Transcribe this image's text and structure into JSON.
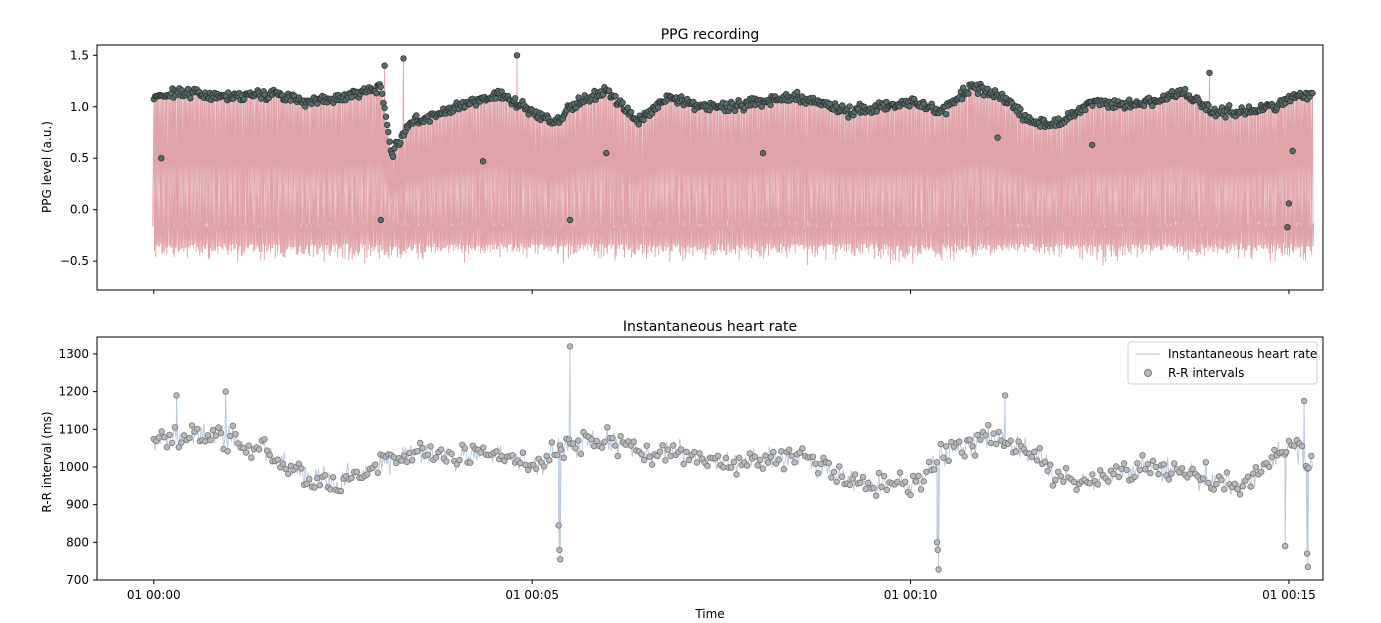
{
  "chart_data": [
    {
      "type": "line",
      "panel": "top",
      "title": "PPG recording",
      "ylabel": "PPG level (a.u.)",
      "xlabel": "",
      "xlim_minutes": [
        -0.75,
        15.45
      ],
      "ylim": [
        -0.78,
        1.6
      ],
      "yticks": [
        -0.5,
        0.0,
        0.5,
        1.0,
        1.5
      ],
      "ytick_labels": [
        "−0.5",
        "0.0",
        "0.5",
        "1.0",
        "1.5"
      ],
      "xticks_minutes": [
        0,
        5,
        10,
        15
      ],
      "xtick_labels": [
        "",
        "",
        "",
        ""
      ],
      "grid": false,
      "series": [
        {
          "role": "signal",
          "color": "#e0a4a8"
        },
        {
          "role": "peaks",
          "color": "#546e6d",
          "edge_color": "#333333"
        }
      ],
      "duration_minutes": 15.33,
      "baseline_level": -0.15,
      "peak_level_profile": {
        "t_minutes": [
          0.0,
          0.4,
          0.8,
          1.2,
          1.6,
          2.0,
          2.4,
          2.8,
          3.0,
          3.15,
          3.4,
          3.8,
          4.2,
          4.6,
          5.0,
          5.3,
          5.6,
          6.0,
          6.4,
          6.8,
          7.2,
          7.6,
          8.0,
          8.4,
          8.8,
          9.2,
          9.6,
          10.0,
          10.4,
          10.8,
          11.2,
          11.6,
          12.0,
          12.4,
          12.8,
          13.2,
          13.6,
          14.0,
          14.4,
          14.8,
          15.0,
          15.2,
          15.33
        ],
        "level": [
          1.1,
          1.15,
          1.1,
          1.12,
          1.13,
          1.05,
          1.08,
          1.15,
          1.2,
          0.55,
          0.85,
          0.95,
          1.05,
          1.12,
          0.95,
          0.85,
          1.05,
          1.15,
          0.85,
          1.1,
          1.0,
          1.0,
          1.05,
          1.08,
          1.05,
          0.95,
          1.0,
          1.05,
          0.95,
          1.2,
          1.1,
          0.85,
          0.85,
          1.05,
          1.02,
          1.05,
          1.15,
          0.95,
          0.95,
          1.0,
          1.1,
          1.1,
          1.15
        ]
      },
      "outlier_peaks": [
        {
          "t_minutes": 0.1,
          "value": 0.5
        },
        {
          "t_minutes": 3.0,
          "value": -0.1
        },
        {
          "t_minutes": 3.05,
          "value": 1.4
        },
        {
          "t_minutes": 3.3,
          "value": 1.47
        },
        {
          "t_minutes": 4.8,
          "value": 1.5
        },
        {
          "t_minutes": 4.35,
          "value": 0.47
        },
        {
          "t_minutes": 5.5,
          "value": -0.1
        },
        {
          "t_minutes": 5.98,
          "value": 0.55
        },
        {
          "t_minutes": 8.05,
          "value": 0.55
        },
        {
          "t_minutes": 11.15,
          "value": 0.7
        },
        {
          "t_minutes": 12.4,
          "value": 0.63
        },
        {
          "t_minutes": 13.95,
          "value": 1.33
        },
        {
          "t_minutes": 15.0,
          "value": 0.06
        },
        {
          "t_minutes": 14.98,
          "value": -0.17
        },
        {
          "t_minutes": 15.05,
          "value": 0.57
        }
      ]
    },
    {
      "type": "line",
      "panel": "bottom",
      "title": "Instantaneous heart rate",
      "ylabel": "R-R interval (ms)",
      "xlabel": "Time",
      "xlim_minutes": [
        -0.75,
        15.45
      ],
      "ylim": [
        700,
        1345
      ],
      "yticks": [
        700,
        800,
        900,
        1000,
        1100,
        1200,
        1300
      ],
      "ytick_labels": [
        "700",
        "800",
        "900",
        "1000",
        "1100",
        "1200",
        "1300"
      ],
      "xticks_minutes": [
        0,
        5,
        10,
        15
      ],
      "xtick_labels": [
        "01 00:00",
        "01 00:05",
        "01 00:10",
        "01 00:15"
      ],
      "grid": false,
      "legend": {
        "placement": "upper right",
        "entries": [
          "Instantaneous heart rate",
          "R-R intervals"
        ]
      },
      "series": [
        {
          "name": "Instantaneous heart rate",
          "color": "#b7c8e0"
        },
        {
          "name": "R-R intervals",
          "color": "#b9b9b9",
          "edge_color": "#777777"
        }
      ],
      "rr_trend_ms": {
        "t_minutes": [
          0.0,
          0.5,
          1.0,
          1.5,
          2.0,
          2.5,
          3.0,
          3.5,
          4.0,
          4.5,
          5.0,
          5.5,
          6.0,
          6.5,
          7.0,
          7.5,
          8.0,
          8.5,
          9.0,
          9.5,
          10.0,
          10.5,
          11.0,
          11.5,
          12.0,
          12.5,
          13.0,
          13.5,
          14.0,
          14.5,
          15.0,
          15.33
        ],
        "value": [
          1070,
          1090,
          1080,
          1040,
          960,
          960,
          1010,
          1040,
          1020,
          1040,
          1000,
          1060,
          1070,
          1040,
          1040,
          1010,
          1020,
          1030,
          980,
          960,
          950,
          1040,
          1090,
          1050,
          970,
          960,
          1000,
          1000,
          960,
          960,
          1060,
          1000
        ]
      },
      "rr_outliers_ms": [
        {
          "t_minutes": 5.35,
          "value": 845
        },
        {
          "t_minutes": 5.36,
          "value": 780
        },
        {
          "t_minutes": 5.37,
          "value": 755
        },
        {
          "t_minutes": 5.5,
          "value": 1320
        },
        {
          "t_minutes": 0.3,
          "value": 1190
        },
        {
          "t_minutes": 0.95,
          "value": 1200
        },
        {
          "t_minutes": 10.35,
          "value": 800
        },
        {
          "t_minutes": 10.36,
          "value": 780
        },
        {
          "t_minutes": 10.37,
          "value": 728
        },
        {
          "t_minutes": 14.95,
          "value": 790
        },
        {
          "t_minutes": 15.25,
          "value": 735
        },
        {
          "t_minutes": 15.24,
          "value": 770
        },
        {
          "t_minutes": 15.2,
          "value": 1175
        },
        {
          "t_minutes": 11.25,
          "value": 1190
        }
      ]
    }
  ]
}
